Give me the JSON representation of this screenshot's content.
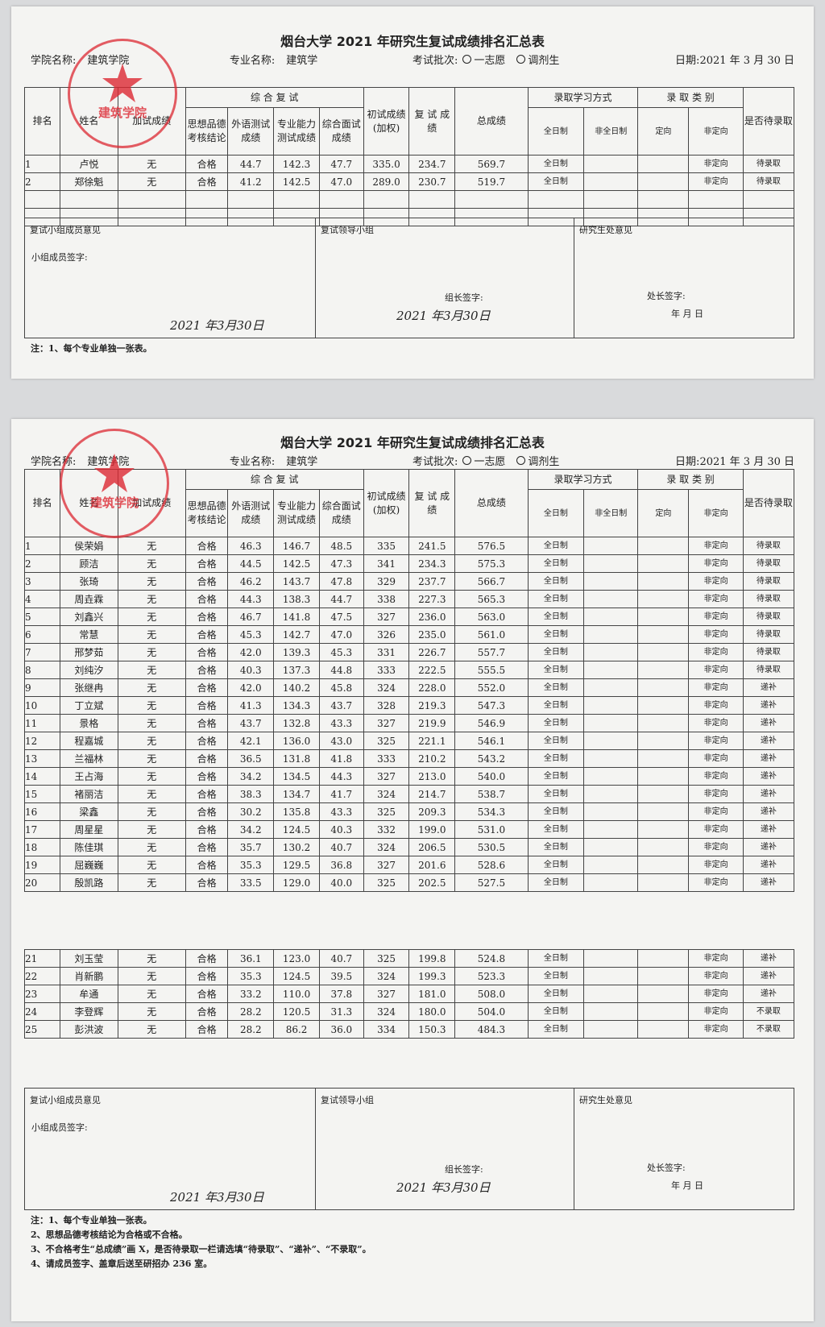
{
  "table_header": {
    "rank": "排名",
    "name": "姓名",
    "bonus": "加试成绩",
    "group": "综 合 复 试",
    "sub": [
      "思想品德考核结论",
      "外语测试成绩",
      "专业能力测试成绩",
      "综合面试成绩"
    ],
    "initial": "初试成绩(加权)",
    "retest": "复 试 成 绩",
    "total": "总成绩",
    "mode": "录取学习方式",
    "mode_sub": [
      "全日制",
      "非全日制"
    ],
    "category": "录 取 类 别",
    "category_sub": [
      "定向",
      "非定向"
    ],
    "admit": "是否待录取"
  },
  "opinion": {
    "group": "复试小组成员意见",
    "group_sign": "小组成员签字:",
    "leader": "复试领导小组",
    "leader_sign": "组长签字:",
    "office": "研究生处意见",
    "office_sign": "处长签字:",
    "office_date": "年 月 日"
  },
  "notes": [
    "注：1、每个专业单独一张表。",
    "2、思想品德考核结论为合格或不合格。",
    "3、不合格考生“总成绩”画 X，是否待录取一栏请选填“待录取”、“递补”、“不录取”。",
    "4、请成员签字、盖章后送至研招办 236 室。"
  ],
  "sheets": [
    {
      "title": "烟台大学 2021 年研究生复试成绩排名汇总表",
      "college_label": "学院名称:",
      "college": "建筑学院",
      "major_label": "专业名称:",
      "major": "建筑学",
      "batch_label": "考试批次:",
      "batch_options": [
        "一志愿",
        "调剂生"
      ],
      "date_label": "日期:",
      "date": "2021 年 3 月 30 日",
      "stamp": "建筑学院",
      "group_date": "2021 年3月30日",
      "leader_date": "2021 年3月30日",
      "rows": [
        [
          "1",
          "卢悦",
          "无",
          "合格",
          "44.7",
          "142.3",
          "47.7",
          "335.0",
          "234.7",
          "569.7",
          "全日制",
          "非定向",
          "待录取"
        ],
        [
          "2",
          "郑徐魁",
          "无",
          "合格",
          "41.2",
          "142.5",
          "47.0",
          "289.0",
          "230.7",
          "519.7",
          "全日制",
          "非定向",
          "待录取"
        ]
      ]
    },
    {
      "title": "烟台大学 2021 年研究生复试成绩排名汇总表",
      "college_label": "学院名称:",
      "college": "建筑学院",
      "major_label": "专业名称:",
      "major": "建筑学",
      "batch_label": "考试批次:",
      "batch_options": [
        "一志愿",
        "调剂生"
      ],
      "date_label": "日期:",
      "date": "2021 年 3 月 30 日",
      "stamp": "建筑学院",
      "group_date": "2021 年3月30日",
      "leader_date": "2021 年3月30日",
      "rows": [
        [
          "1",
          "侯荣娟",
          "无",
          "合格",
          "46.3",
          "146.7",
          "48.5",
          "335",
          "241.5",
          "576.5",
          "全日制",
          "非定向",
          "待录取"
        ],
        [
          "2",
          "顾洁",
          "无",
          "合格",
          "44.5",
          "142.5",
          "47.3",
          "341",
          "234.3",
          "575.3",
          "全日制",
          "非定向",
          "待录取"
        ],
        [
          "3",
          "张琦",
          "无",
          "合格",
          "46.2",
          "143.7",
          "47.8",
          "329",
          "237.7",
          "566.7",
          "全日制",
          "非定向",
          "待录取"
        ],
        [
          "4",
          "周垚霖",
          "无",
          "合格",
          "44.3",
          "138.3",
          "44.7",
          "338",
          "227.3",
          "565.3",
          "全日制",
          "非定向",
          "待录取"
        ],
        [
          "5",
          "刘鑫兴",
          "无",
          "合格",
          "46.7",
          "141.8",
          "47.5",
          "327",
          "236.0",
          "563.0",
          "全日制",
          "非定向",
          "待录取"
        ],
        [
          "6",
          "常慧",
          "无",
          "合格",
          "45.3",
          "142.7",
          "47.0",
          "326",
          "235.0",
          "561.0",
          "全日制",
          "非定向",
          "待录取"
        ],
        [
          "7",
          "邢梦茹",
          "无",
          "合格",
          "42.0",
          "139.3",
          "45.3",
          "331",
          "226.7",
          "557.7",
          "全日制",
          "非定向",
          "待录取"
        ],
        [
          "8",
          "刘纯汐",
          "无",
          "合格",
          "40.3",
          "137.3",
          "44.8",
          "333",
          "222.5",
          "555.5",
          "全日制",
          "非定向",
          "待录取"
        ],
        [
          "9",
          "张继冉",
          "无",
          "合格",
          "42.0",
          "140.2",
          "45.8",
          "324",
          "228.0",
          "552.0",
          "全日制",
          "非定向",
          "递补"
        ],
        [
          "10",
          "丁立斌",
          "无",
          "合格",
          "41.3",
          "134.3",
          "43.7",
          "328",
          "219.3",
          "547.3",
          "全日制",
          "非定向",
          "递补"
        ],
        [
          "11",
          "景格",
          "无",
          "合格",
          "43.7",
          "132.8",
          "43.3",
          "327",
          "219.9",
          "546.9",
          "全日制",
          "非定向",
          "递补"
        ],
        [
          "12",
          "程嘉城",
          "无",
          "合格",
          "42.1",
          "136.0",
          "43.0",
          "325",
          "221.1",
          "546.1",
          "全日制",
          "非定向",
          "递补"
        ],
        [
          "13",
          "兰福林",
          "无",
          "合格",
          "36.5",
          "131.8",
          "41.8",
          "333",
          "210.2",
          "543.2",
          "全日制",
          "非定向",
          "递补"
        ],
        [
          "14",
          "王占海",
          "无",
          "合格",
          "34.2",
          "134.5",
          "44.3",
          "327",
          "213.0",
          "540.0",
          "全日制",
          "非定向",
          "递补"
        ],
        [
          "15",
          "褚丽洁",
          "无",
          "合格",
          "38.3",
          "134.7",
          "41.7",
          "324",
          "214.7",
          "538.7",
          "全日制",
          "非定向",
          "递补"
        ],
        [
          "16",
          "梁鑫",
          "无",
          "合格",
          "30.2",
          "135.8",
          "43.3",
          "325",
          "209.3",
          "534.3",
          "全日制",
          "非定向",
          "递补"
        ],
        [
          "17",
          "周星星",
          "无",
          "合格",
          "34.2",
          "124.5",
          "40.3",
          "332",
          "199.0",
          "531.0",
          "全日制",
          "非定向",
          "递补"
        ],
        [
          "18",
          "陈佳琪",
          "无",
          "合格",
          "35.7",
          "130.2",
          "40.7",
          "324",
          "206.5",
          "530.5",
          "全日制",
          "非定向",
          "递补"
        ],
        [
          "19",
          "屈巍巍",
          "无",
          "合格",
          "35.3",
          "129.5",
          "36.8",
          "327",
          "201.6",
          "528.6",
          "全日制",
          "非定向",
          "递补"
        ],
        [
          "20",
          "殷凯路",
          "无",
          "合格",
          "33.5",
          "129.0",
          "40.0",
          "325",
          "202.5",
          "527.5",
          "全日制",
          "非定向",
          "递补"
        ],
        [
          "21",
          "刘玉莹",
          "无",
          "合格",
          "36.1",
          "123.0",
          "40.7",
          "325",
          "199.8",
          "524.8",
          "全日制",
          "非定向",
          "递补"
        ],
        [
          "22",
          "肖新鹏",
          "无",
          "合格",
          "35.3",
          "124.5",
          "39.5",
          "324",
          "199.3",
          "523.3",
          "全日制",
          "非定向",
          "递补"
        ],
        [
          "23",
          "牟通",
          "无",
          "合格",
          "33.2",
          "110.0",
          "37.8",
          "327",
          "181.0",
          "508.0",
          "全日制",
          "非定向",
          "递补"
        ],
        [
          "24",
          "李登辉",
          "无",
          "合格",
          "28.2",
          "120.5",
          "31.3",
          "324",
          "180.0",
          "504.0",
          "全日制",
          "非定向",
          "不录取"
        ],
        [
          "25",
          "彭洪波",
          "无",
          "合格",
          "28.2",
          "86.2",
          "36.0",
          "334",
          "150.3",
          "484.3",
          "全日制",
          "非定向",
          "不录取"
        ]
      ]
    }
  ]
}
